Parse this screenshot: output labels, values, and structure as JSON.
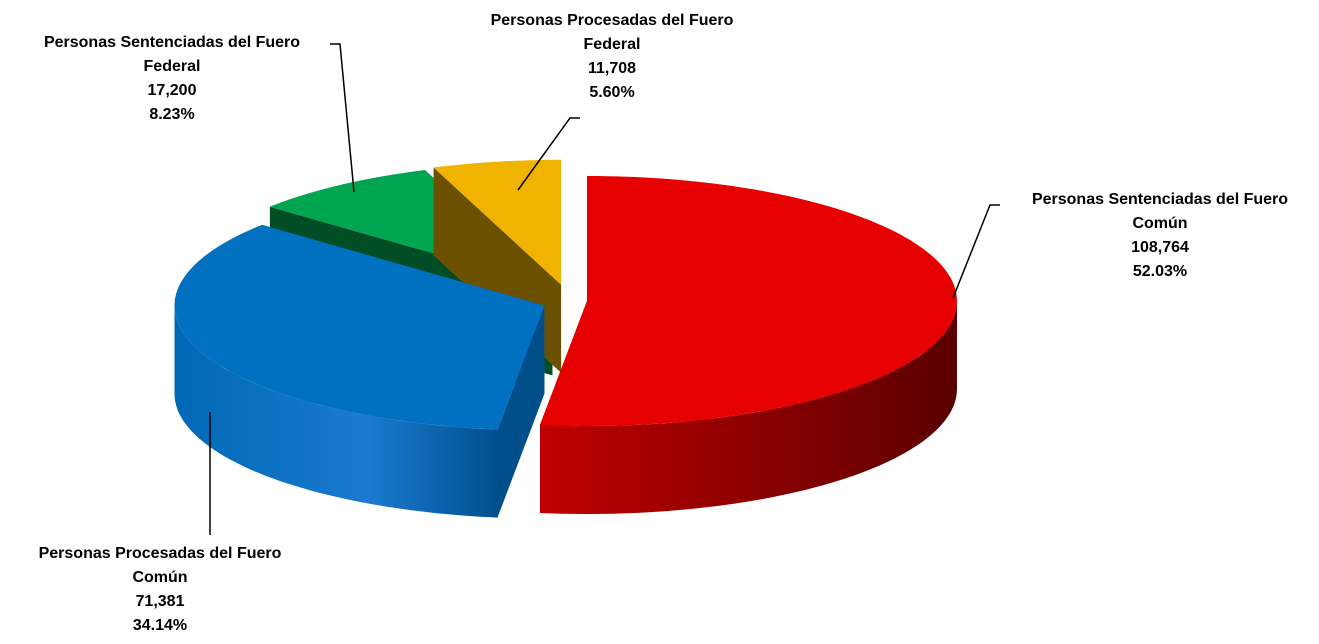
{
  "chart_data": {
    "type": "pie3d",
    "categories": [
      "Personas Sentenciadas del Fuero Común",
      "Personas Procesadas del Fuero Común",
      "Personas Sentenciadas del Fuero Federal",
      "Personas Procesadas del Fuero Federal"
    ],
    "values": [
      108764,
      71381,
      17200,
      11708
    ],
    "value_labels": [
      "108,764",
      "71,381",
      "17,200",
      "11,708"
    ],
    "percentages": [
      52.03,
      34.14,
      8.23,
      5.6
    ],
    "percentage_labels": [
      "52.03%",
      "34.14%",
      "8.23%",
      "5.60%"
    ],
    "colors": [
      "#e60000",
      "#0070c0",
      "#00a550",
      "#f0b400"
    ]
  }
}
